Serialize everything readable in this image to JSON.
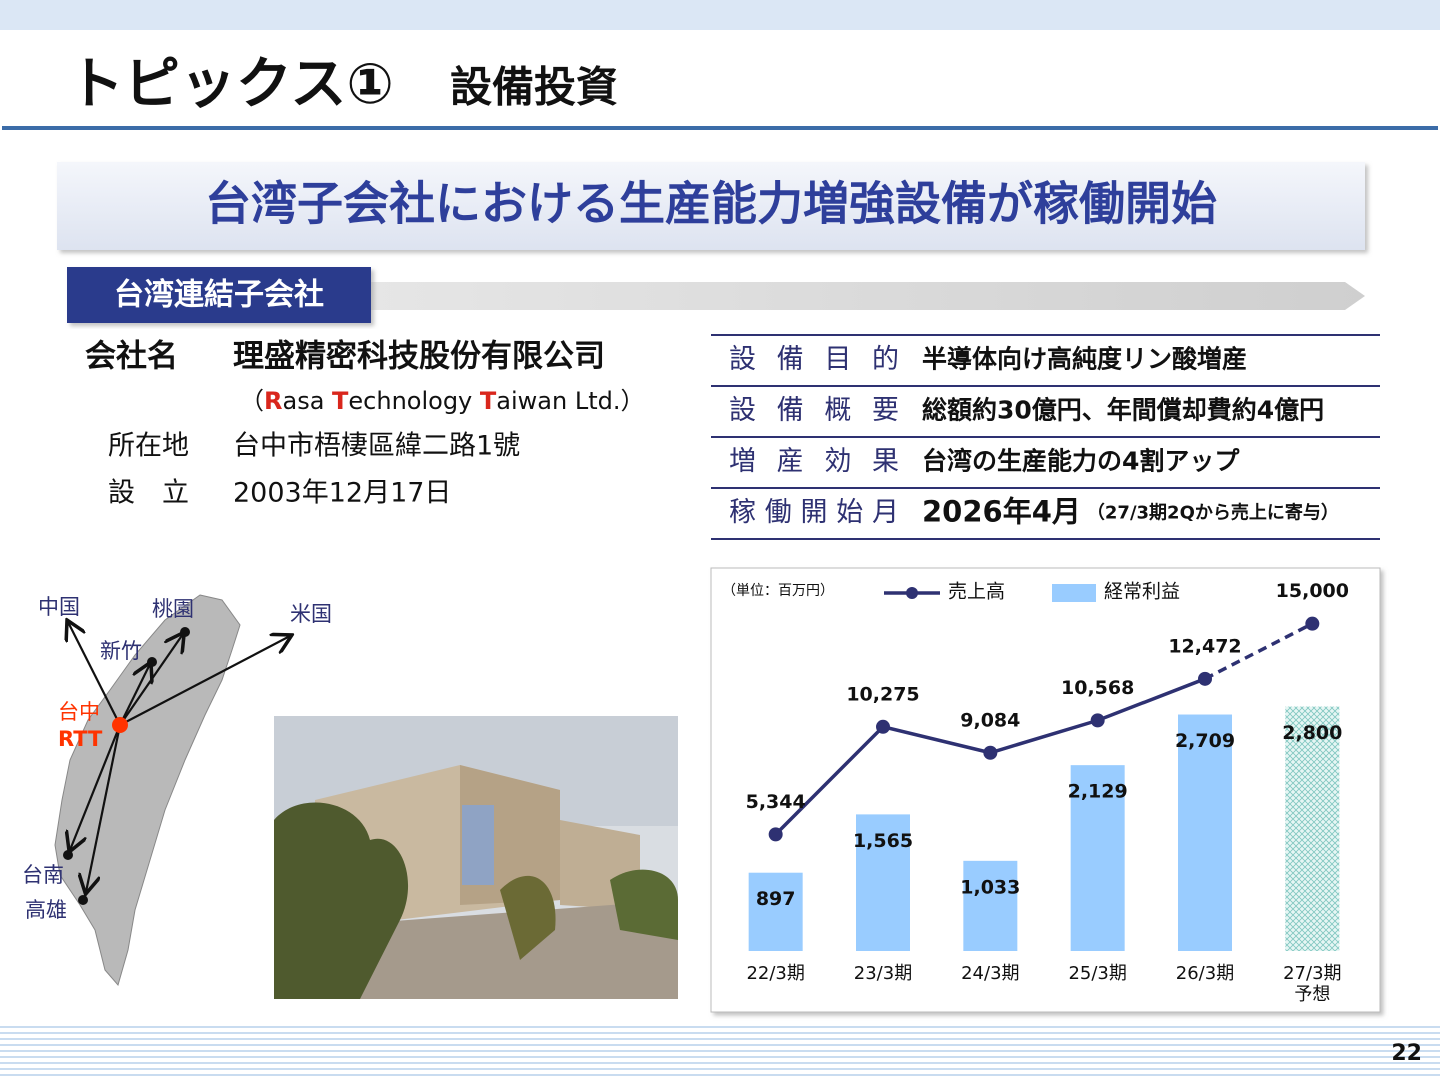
{
  "header": {
    "title": "トピックス①",
    "subtitle": "設備投資"
  },
  "banner": "台湾子会社における生産能力増強設備が稼働開始",
  "section_label": "台湾連結子会社",
  "company": {
    "name_label": "会社名",
    "name": "理盛精密科技股份有限公司",
    "english_name_parts": [
      "（",
      "R",
      "asa ",
      "T",
      "echnology ",
      "T",
      "aiwan Ltd.）"
    ],
    "location_label": "所在地",
    "location": "台中市梧棲區緯二路1號",
    "founded_label": "設　立",
    "founded": "2003年12月17日"
  },
  "table": {
    "rows": [
      [
        "設備目的",
        "半導体向け高純度リン酸増産"
      ],
      [
        "設備概要",
        "総額約30億円、年間償却費約4億円"
      ],
      [
        "増産効果",
        "台湾の生産能力の4割アップ"
      ],
      [
        "稼働開始月",
        "2026年4月",
        "（27/3期2Qから売上に寄与）"
      ]
    ]
  },
  "map": {
    "labels": [
      "中国",
      "桃園",
      "米国",
      "新竹",
      "台中",
      "RTT",
      "台南",
      "高雄"
    ]
  },
  "page_number": "22",
  "chart_data": {
    "type": "bar_line",
    "unit_label": "（単位：百万円）",
    "categories": [
      "22/3期",
      "23/3期",
      "24/3期",
      "25/3期",
      "26/3期",
      "27/3期"
    ],
    "forecast_label": "予想",
    "ylim": [
      0,
      17000
    ],
    "y2lim": [
      0,
      4250
    ],
    "dash_last_segment": true,
    "hatch_last_bar": true,
    "series": [
      {
        "name": "売上高",
        "type": "line",
        "color": "#2e3172",
        "values": [
          5344,
          10275,
          9084,
          10568,
          12472,
          15000
        ],
        "value_labels": [
          "5,344",
          "10,275",
          "9,084",
          "10,568",
          "12,472",
          "15,000"
        ]
      },
      {
        "name": "経常利益",
        "type": "bar",
        "axis": "y2",
        "color": "#99ccff",
        "values": [
          897,
          1565,
          1033,
          2129,
          2709,
          2800
        ],
        "value_labels": [
          "897",
          "1,565",
          "1,033",
          "2,129",
          "2,709",
          "2,800"
        ]
      }
    ]
  }
}
